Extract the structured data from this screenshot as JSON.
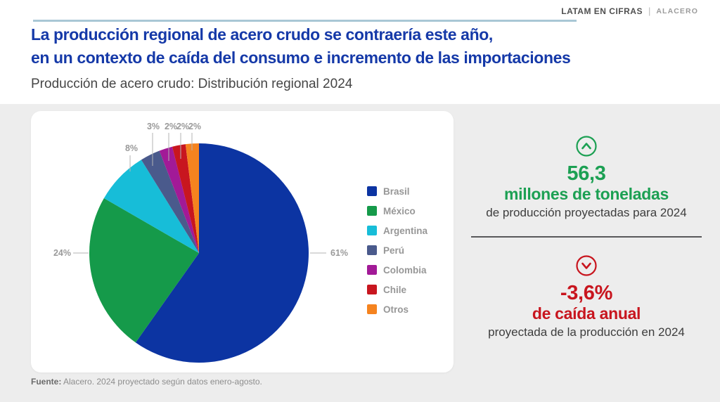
{
  "header": {
    "brand": {
      "primary": "LATAM EN CIFRAS",
      "separator": "|",
      "secondary": "ALACERO"
    },
    "title_line1": "La producción regional de acero crudo se contraería este año,",
    "title_line2": "en un contexto de caída del consumo e incremento de las importaciones",
    "subtitle": "Producción de acero crudo: Distribución regional 2024"
  },
  "chart_data": {
    "type": "pie",
    "title": "Producción de acero crudo: Distribución regional 2024",
    "unit": "%",
    "start_angle_deg": 0,
    "direction": "clockwise",
    "legend_position": "right",
    "series": [
      {
        "name": "Brasil",
        "value": 61,
        "color": "#0c34a2"
      },
      {
        "name": "México",
        "value": 24,
        "color": "#159a4a"
      },
      {
        "name": "Argentina",
        "value": 8,
        "color": "#17bdd8"
      },
      {
        "name": "Perú",
        "value": 3,
        "color": "#4a5a8c"
      },
      {
        "name": "Colombia",
        "value": 2,
        "color": "#a21a97"
      },
      {
        "name": "Chile",
        "value": 2,
        "color": "#c8161f"
      },
      {
        "name": "Otros",
        "value": 2,
        "color": "#f5831f"
      }
    ]
  },
  "stats": {
    "increase": {
      "icon": "circle-chevron-up-icon",
      "value": "56,3",
      "label": "millones de toneladas",
      "caption": "de producción proyectadas para 2024",
      "color": "#1ca053"
    },
    "decrease": {
      "icon": "circle-chevron-down-icon",
      "value": "-3,6%",
      "label": "de caída anual",
      "caption": "proyectada de la producción en 2024",
      "color": "#c8151e"
    }
  },
  "footer": {
    "source_label": "Fuente:",
    "source_text": " Alacero. 2024 proyectado según datos enero-agosto."
  },
  "colors": {
    "title_blue": "#1539a8",
    "rule_blue": "#a9c7d5",
    "background_gray": "#ededed",
    "card_white": "#ffffff",
    "positive_green": "#1ca053",
    "negative_red": "#c8151e",
    "caption_gray": "#3d3d3d",
    "muted_label_gray": "#9a9a9a"
  }
}
